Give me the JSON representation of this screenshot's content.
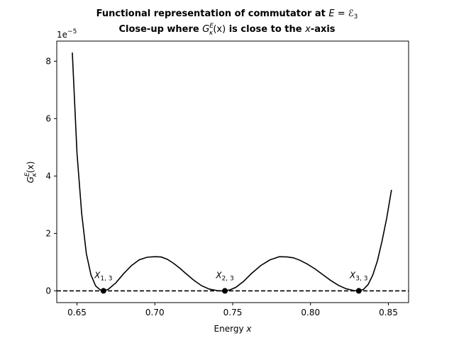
{
  "chart_data": {
    "type": "line",
    "title_line1_prefix": "Functional representation of commutator at ",
    "title_line1_math": "E = ℰ",
    "title_line1_math_sub": "3",
    "title_line2_prefix": "Close-up where ",
    "title_line2_G": "G",
    "title_line2_sup": "E",
    "title_line2_sub": "κ",
    "title_line2_arg": "(x)",
    "title_line2_mid": " is close to the ",
    "title_line2_x": "x",
    "title_line2_suffix": "-axis",
    "xlabel_prefix": "Energy ",
    "xlabel_var": "x",
    "ylabel_G": "G",
    "ylabel_sup": "E",
    "ylabel_sub": "κ",
    "ylabel_arg": "(x)",
    "y_offset_base": "1e",
    "y_offset_exp": "−5",
    "xlim": [
      0.637,
      0.863
    ],
    "ylim": [
      -0.41,
      8.7
    ],
    "y_scale_note": "values in units of 1e-5",
    "xticks": [
      0.65,
      0.7,
      0.75,
      0.8,
      0.85
    ],
    "xtick_labels": [
      "0.65",
      "0.70",
      "0.75",
      "0.80",
      "0.85"
    ],
    "yticks": [
      0,
      2,
      4,
      6,
      8
    ],
    "ytick_labels": [
      "0",
      "2",
      "4",
      "6",
      "8"
    ],
    "grid": false,
    "series": [
      {
        "style": "solid",
        "color": "#000000",
        "x": [
          0.647,
          0.65,
          0.653,
          0.656,
          0.659,
          0.662,
          0.665,
          0.667,
          0.67,
          0.675,
          0.68,
          0.685,
          0.69,
          0.695,
          0.7,
          0.704,
          0.708,
          0.712,
          0.716,
          0.72,
          0.725,
          0.73,
          0.735,
          0.74,
          0.743,
          0.745,
          0.748,
          0.752,
          0.757,
          0.762,
          0.768,
          0.774,
          0.78,
          0.785,
          0.789,
          0.793,
          0.798,
          0.803,
          0.808,
          0.813,
          0.818,
          0.823,
          0.828,
          0.831,
          0.834,
          0.837,
          0.84,
          0.843,
          0.846,
          0.849,
          0.852
        ],
        "y": [
          8.3,
          4.8,
          2.7,
          1.3,
          0.55,
          0.17,
          0.03,
          0.0,
          0.05,
          0.28,
          0.6,
          0.88,
          1.08,
          1.17,
          1.19,
          1.18,
          1.1,
          0.96,
          0.79,
          0.6,
          0.37,
          0.18,
          0.06,
          0.01,
          0.0,
          0.0,
          0.03,
          0.12,
          0.33,
          0.6,
          0.88,
          1.08,
          1.19,
          1.18,
          1.15,
          1.07,
          0.93,
          0.76,
          0.56,
          0.36,
          0.19,
          0.07,
          0.01,
          0.0,
          0.05,
          0.22,
          0.55,
          1.05,
          1.75,
          2.55,
          3.52
        ]
      },
      {
        "style": "dashed",
        "color": "#000000",
        "x": [
          0.637,
          0.863
        ],
        "y": [
          0,
          0
        ]
      }
    ],
    "points": [
      {
        "x": 0.667,
        "y": 0,
        "label": "X",
        "sub": "1, 3"
      },
      {
        "x": 0.745,
        "y": 0,
        "label": "X",
        "sub": "2, 3"
      },
      {
        "x": 0.831,
        "y": 0,
        "label": "X",
        "sub": "3, 3"
      }
    ]
  }
}
